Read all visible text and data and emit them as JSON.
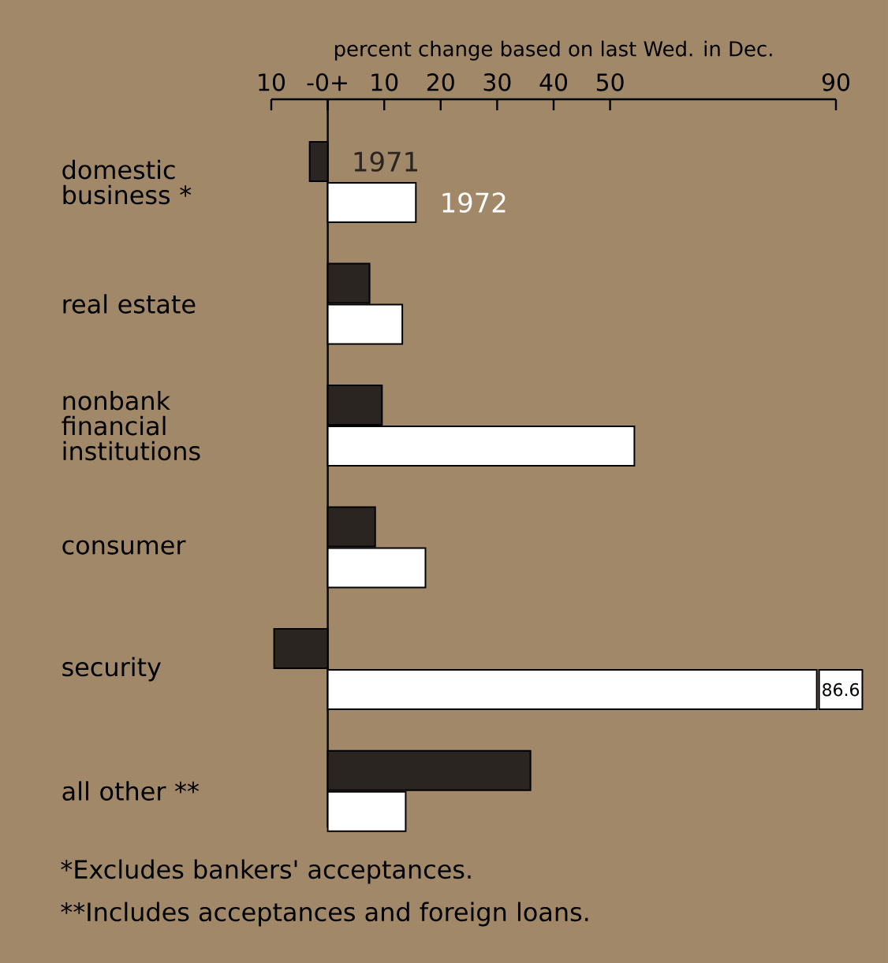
{
  "chart_data": {
    "type": "bar",
    "orientation": "horizontal",
    "xlabel": "percent change based on last Wed. in Dec.",
    "categories": [
      "domestic business *",
      "real estate",
      "nonbank financial institutions",
      "consumer",
      "security",
      "all other **"
    ],
    "series": [
      {
        "name": "1971",
        "color": "#2a2521",
        "values": [
          -3.2,
          7.4,
          9.6,
          8.4,
          -9.5,
          35.9
        ]
      },
      {
        "name": "1972",
        "color": "#ffffff",
        "values": [
          15.6,
          13.2,
          54.3,
          17.3,
          86.6,
          13.8
        ],
        "value_labels": [
          null,
          null,
          null,
          null,
          "86.6",
          null
        ]
      }
    ],
    "xlim": [
      -10,
      90
    ],
    "xticks": [
      {
        "value": -10,
        "label": "10"
      },
      {
        "value": 0,
        "label": "-0+"
      },
      10,
      20,
      30,
      40,
      50,
      90
    ],
    "annotations": [
      "*Excludes bankers' acceptances.",
      "**Includes acceptances and foreign loans."
    ]
  }
}
